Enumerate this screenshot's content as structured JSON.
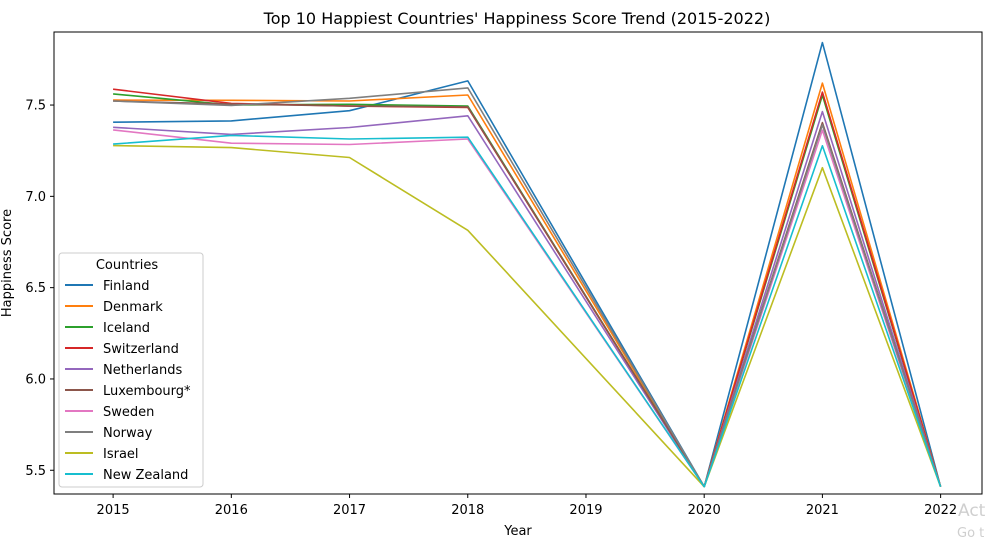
{
  "chart_data": {
    "type": "line",
    "title": "Top 10 Happiest Countries' Happiness Score Trend (2015-2022)",
    "xlabel": "Year",
    "ylabel": "Happiness Score",
    "x": [
      2015,
      2016,
      2017,
      2018,
      2019,
      2020,
      2021,
      2022
    ],
    "xlim": [
      2014.5,
      2022.35
    ],
    "ylim": [
      5.37,
      7.9
    ],
    "yticks": [
      5.5,
      6.0,
      6.5,
      7.0,
      7.5
    ],
    "ytick_labels": [
      "5.5",
      "6.0",
      "6.5",
      "7.0",
      "7.5"
    ],
    "xtick_labels": [
      "2015",
      "2016",
      "2017",
      "2018",
      "2019",
      "2020",
      "2021",
      "2022"
    ],
    "grid": false,
    "legend": {
      "title": "Countries",
      "placement": "lower-left"
    },
    "series": [
      {
        "name": "Finland",
        "color": "#1f77b4",
        "values": [
          7.406,
          7.413,
          7.469,
          7.632,
          null,
          5.41,
          7.842,
          5.41
        ]
      },
      {
        "name": "Denmark",
        "color": "#ff7f0e",
        "values": [
          7.527,
          7.526,
          7.522,
          7.555,
          null,
          5.41,
          7.62,
          5.41
        ]
      },
      {
        "name": "Iceland",
        "color": "#2ca02c",
        "values": [
          7.561,
          7.501,
          7.504,
          7.495,
          null,
          5.41,
          7.554,
          5.41
        ]
      },
      {
        "name": "Switzerland",
        "color": "#d62728",
        "values": [
          7.587,
          7.509,
          7.494,
          7.487,
          null,
          5.41,
          7.571,
          5.41
        ]
      },
      {
        "name": "Netherlands",
        "color": "#9467bd",
        "values": [
          7.378,
          7.339,
          7.377,
          7.441,
          null,
          5.41,
          7.464,
          5.41
        ]
      },
      {
        "name": "Luxembourg*",
        "color": "#8c564b",
        "values": [
          7.522,
          7.505,
          7.495,
          7.49,
          null,
          5.41,
          7.404,
          5.41
        ]
      },
      {
        "name": "Sweden",
        "color": "#e377c2",
        "values": [
          7.364,
          7.291,
          7.284,
          7.314,
          null,
          5.41,
          7.363,
          5.41
        ]
      },
      {
        "name": "Norway",
        "color": "#7f7f7f",
        "values": [
          7.522,
          7.498,
          7.537,
          7.594,
          null,
          5.41,
          7.392,
          5.41
        ]
      },
      {
        "name": "Israel",
        "color": "#bcbd22",
        "values": [
          7.278,
          7.267,
          7.213,
          6.814,
          null,
          5.41,
          7.157,
          5.41
        ]
      },
      {
        "name": "New Zealand",
        "color": "#17becf",
        "values": [
          7.286,
          7.334,
          7.314,
          7.324,
          null,
          5.41,
          7.277,
          5.41
        ]
      }
    ]
  },
  "watermark": {
    "line1": "Act",
    "line2": "Go t"
  }
}
